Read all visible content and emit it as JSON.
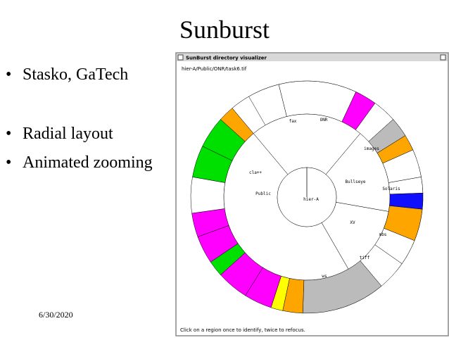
{
  "slide": {
    "title": "Sunburst",
    "bullets": [
      "Stasko, GaTech",
      "Radial layout",
      "Animated zooming"
    ],
    "date": "6/30/2020"
  },
  "window": {
    "title": "SunBurst directory visualizer",
    "path": "hier-A/Public/ONR/task6.tif",
    "status": "Click on a region once to identify, twice to refocus."
  },
  "labels": {
    "root": "hier-A",
    "ring1": [
      "Public",
      "Bullseye",
      "XV"
    ],
    "ring2": [
      "fax",
      "ONR",
      "cla++",
      "images",
      "tiff",
      "ws",
      "Solaris",
      "mbs"
    ]
  }
}
